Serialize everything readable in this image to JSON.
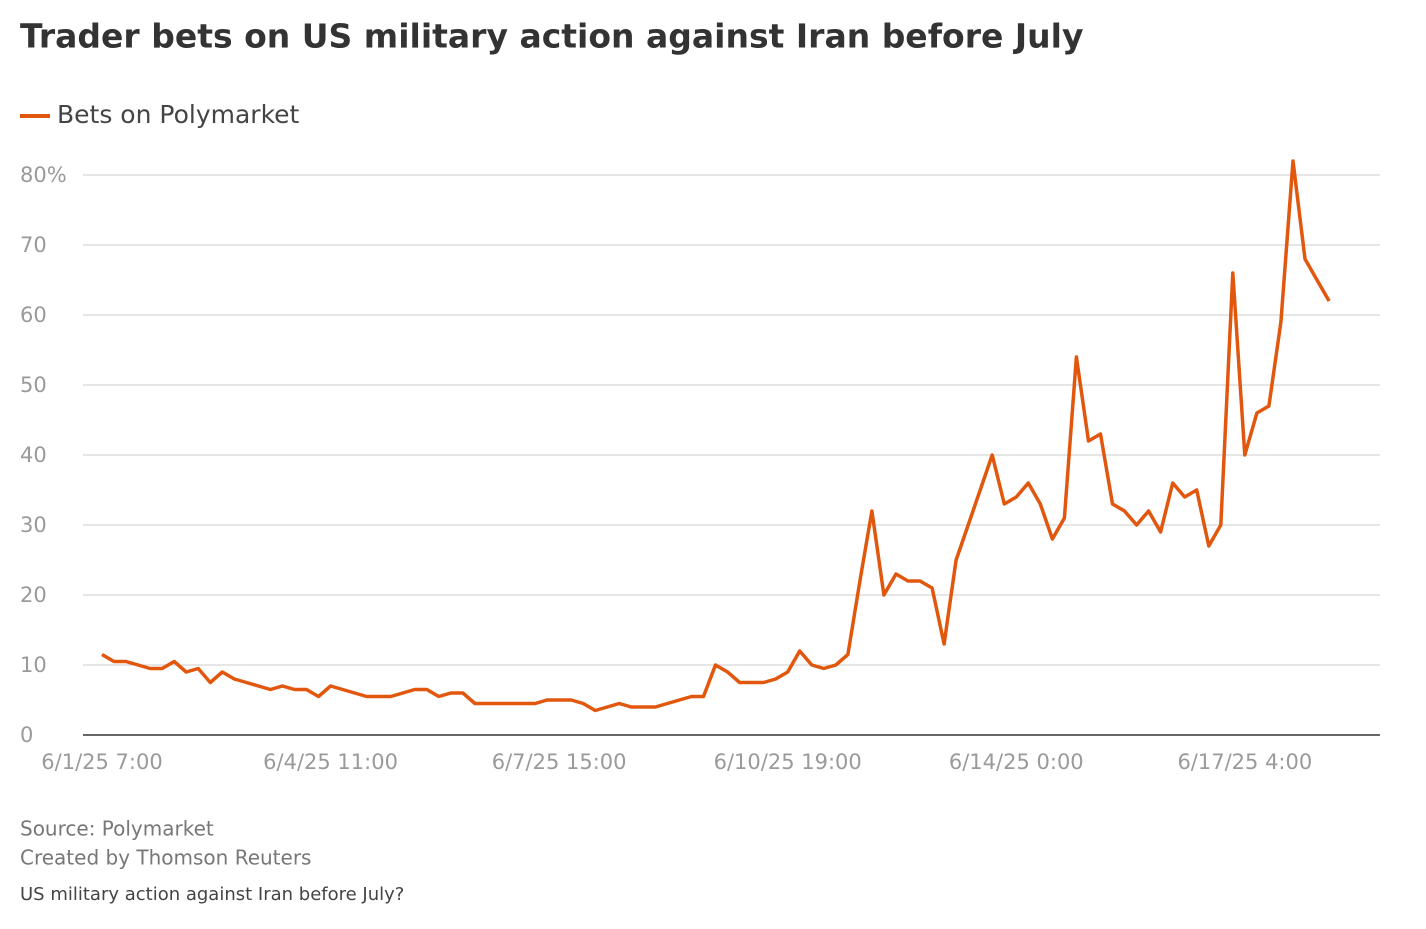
{
  "chart_data": {
    "type": "line",
    "title": "Trader bets on US military action against Iran before July",
    "source": "Source: Polymarket",
    "credit": "Created by Thomson Reuters",
    "note": "US military action against Iran before July?",
    "categories": [
      "6/1/25 7:00",
      null,
      null,
      null,
      null,
      null,
      null,
      null,
      null,
      null,
      null,
      null,
      null,
      null,
      null,
      null,
      null,
      null,
      null,
      "6/4/25 11:00",
      null,
      null,
      null,
      null,
      null,
      null,
      null,
      null,
      null,
      null,
      null,
      null,
      null,
      null,
      null,
      null,
      null,
      null,
      "6/7/25 15:00",
      null,
      null,
      null,
      null,
      null,
      null,
      null,
      null,
      null,
      null,
      null,
      null,
      null,
      null,
      null,
      null,
      null,
      null,
      "6/10/25 19:00",
      null,
      null,
      null,
      null,
      null,
      null,
      null,
      null,
      null,
      null,
      null,
      null,
      null,
      null,
      null,
      null,
      null,
      null,
      "6/14/25 0:00",
      null,
      null,
      null,
      null,
      null,
      null,
      null,
      null,
      null,
      null,
      null,
      null,
      null,
      null,
      null,
      null,
      null,
      null,
      "6/17/25 4:00",
      null,
      null,
      null,
      null,
      null,
      null,
      null
    ],
    "series": [
      {
        "name": "Bets on Polymarket",
        "color": "#e2570e",
        "values": [
          11.5,
          10.5,
          10.5,
          10,
          9.5,
          9.5,
          10.5,
          9,
          9.5,
          7.5,
          9,
          8,
          7.5,
          7,
          6.5,
          7,
          6.5,
          6.5,
          5.5,
          7,
          6.5,
          6,
          5.5,
          5.5,
          5.5,
          6,
          6.5,
          6.5,
          5.5,
          6,
          6,
          4.5,
          4.5,
          4.5,
          4.5,
          4.5,
          4.5,
          5,
          5,
          5,
          4.5,
          3.5,
          4,
          4.5,
          4,
          4,
          4,
          4.5,
          5,
          5.5,
          5.5,
          10,
          9,
          7.5,
          7.5,
          7.5,
          8,
          9,
          12,
          10,
          9.5,
          10,
          11.5,
          22,
          32,
          20,
          23,
          22,
          22,
          21,
          13,
          25,
          30,
          35,
          40,
          33,
          34,
          36,
          33,
          28,
          31,
          54,
          42,
          43,
          33,
          32,
          30,
          32,
          29,
          36,
          34,
          35,
          27,
          30,
          66,
          40,
          46,
          47,
          59,
          82,
          68,
          65,
          62
        ]
      }
    ],
    "ylim": [
      0,
      80
    ],
    "yticks": [
      0,
      10,
      20,
      30,
      40,
      50,
      60,
      70,
      {
        "value": 80,
        "label": "80%"
      }
    ],
    "grid": true
  }
}
